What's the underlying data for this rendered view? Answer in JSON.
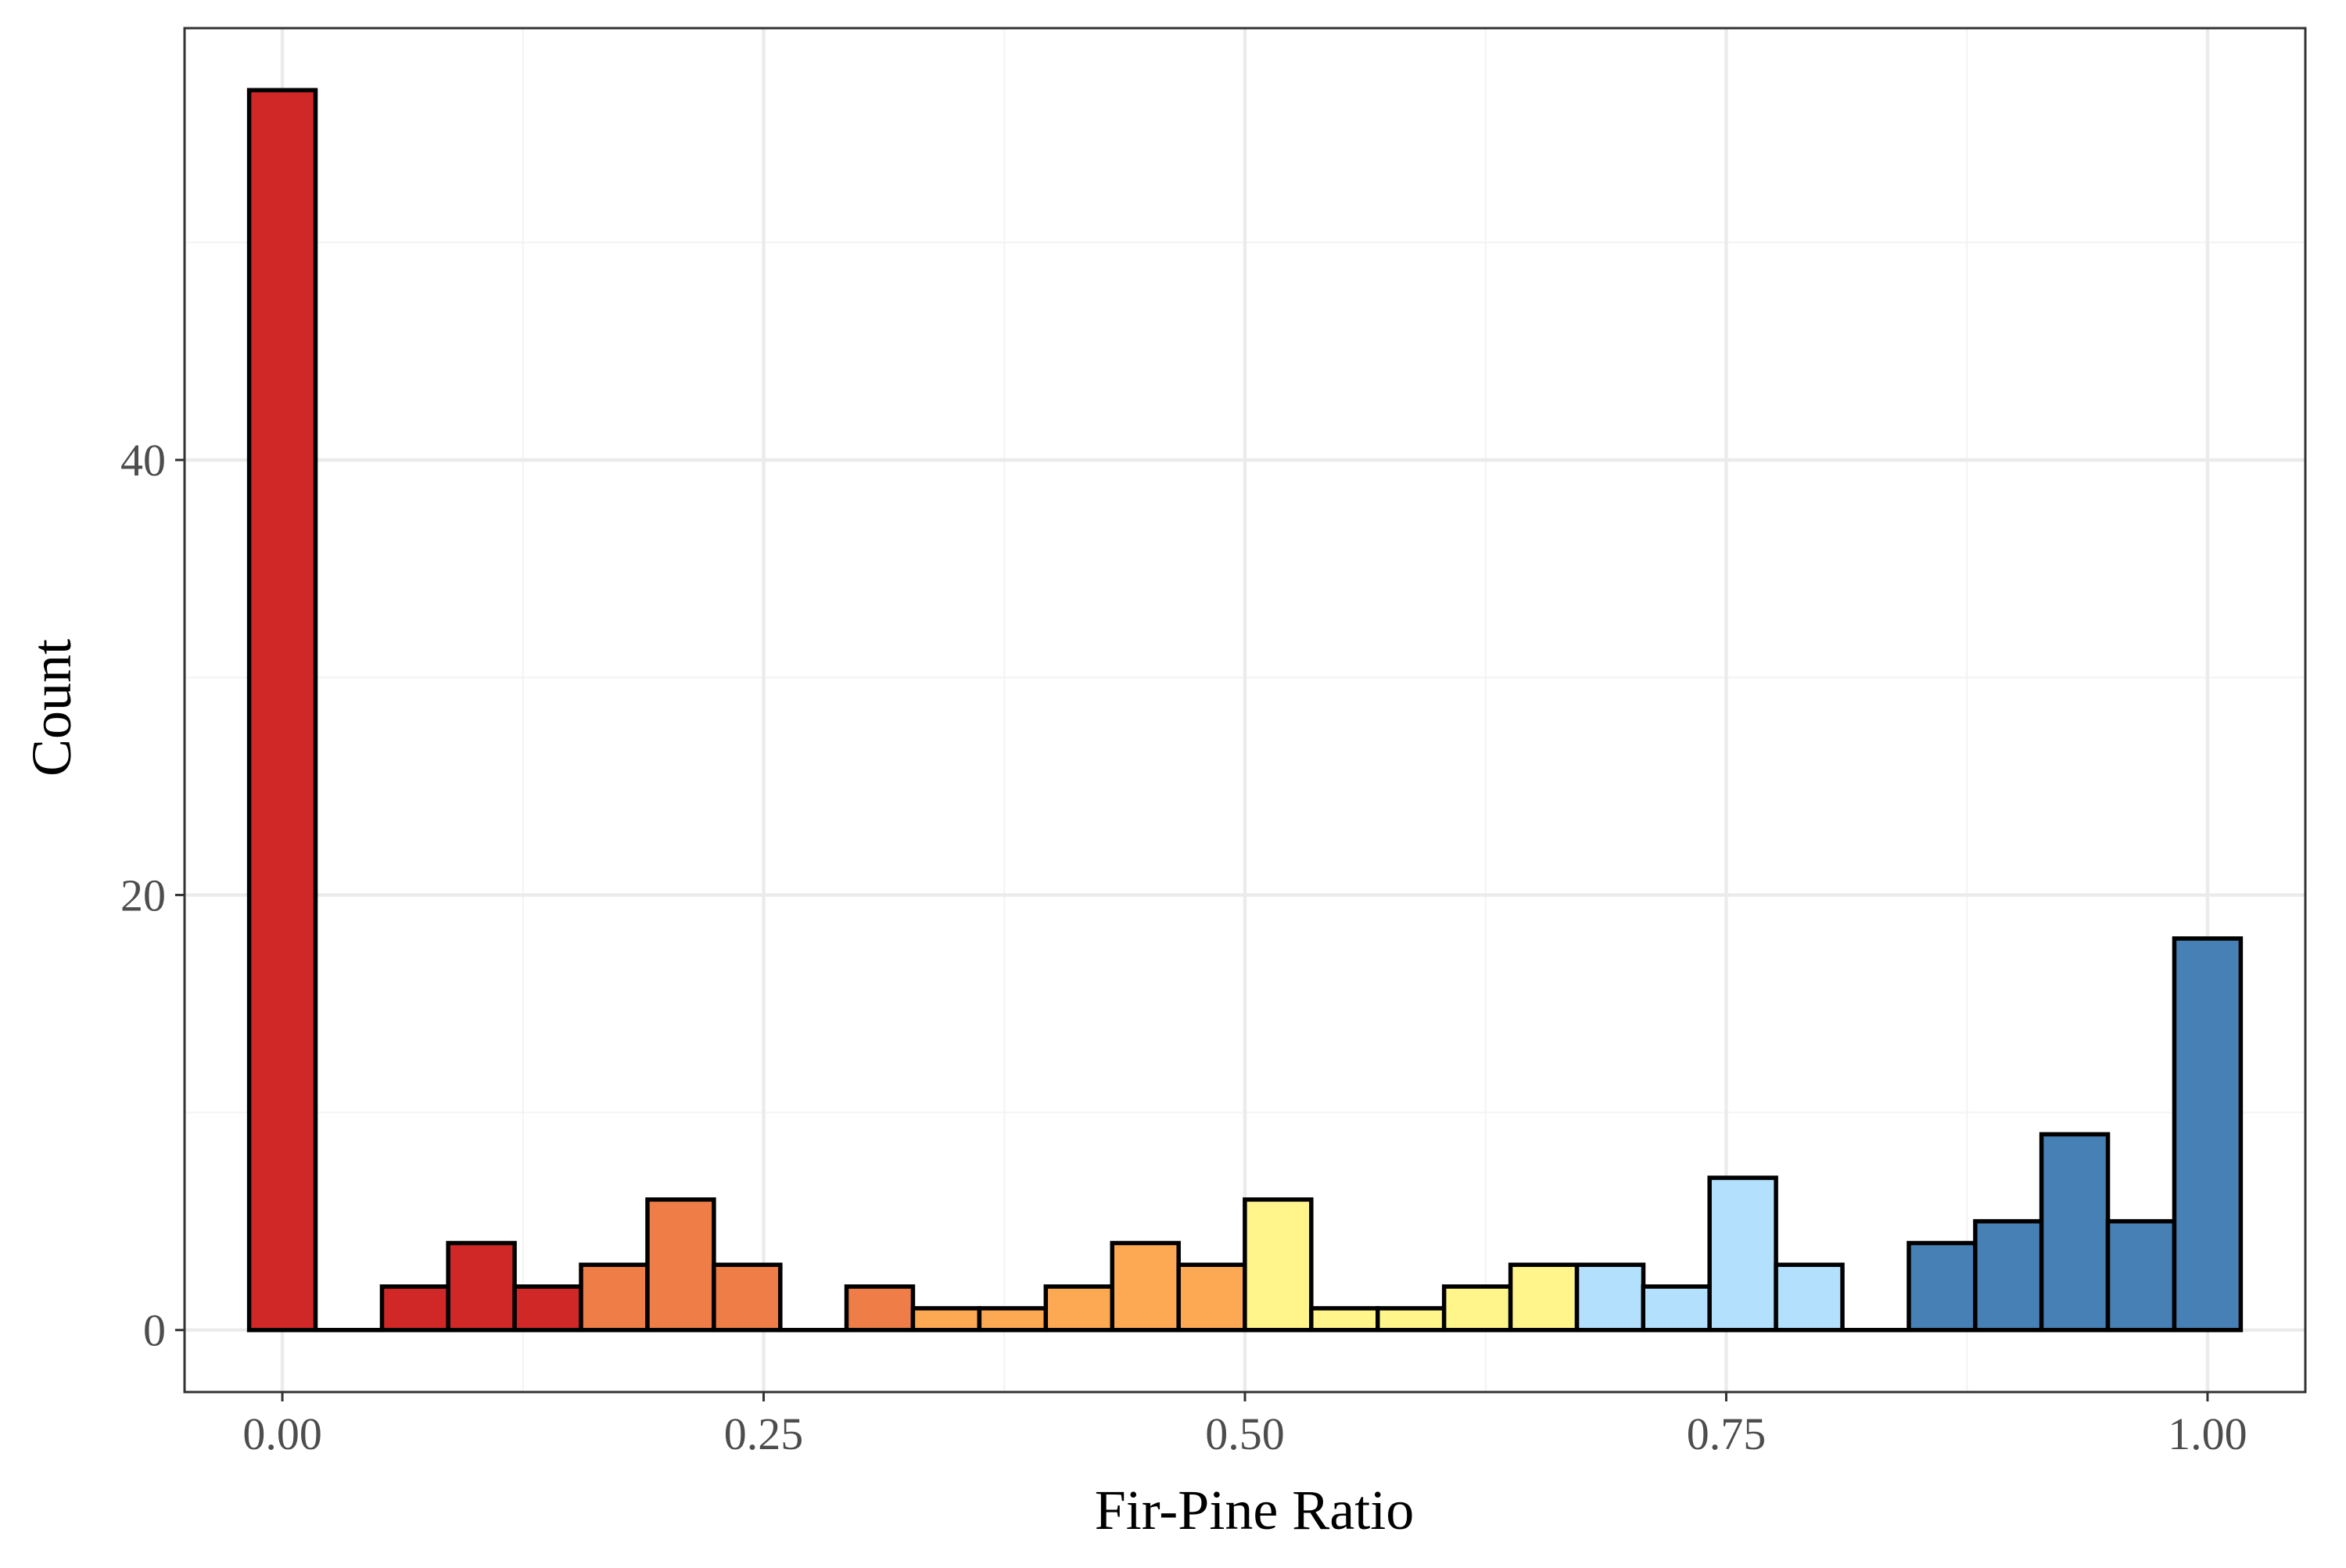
{
  "chart_data": {
    "type": "bar",
    "xlabel": "Fir-Pine Ratio",
    "ylabel": "Count",
    "xlim": [
      -0.0508,
      1.0508
    ],
    "ylim": [
      -2.85,
      59.85
    ],
    "x_ticks": [
      0.0,
      0.25,
      0.5,
      0.75,
      1.0
    ],
    "x_tick_labels": [
      "0.00",
      "0.25",
      "0.50",
      "0.75",
      "1.00"
    ],
    "x_minor_ticks": [
      0.125,
      0.375,
      0.625,
      0.875
    ],
    "y_ticks": [
      0,
      20,
      40
    ],
    "y_tick_labels": [
      "0",
      "20",
      "40"
    ],
    "y_minor_ticks": [
      10,
      30,
      50
    ],
    "grid": true,
    "legend": "none",
    "bin_width": 0.0345,
    "bins": [
      {
        "x": 0.0,
        "count": 57,
        "fill": "#d02727"
      },
      {
        "x": 0.0345,
        "count": 0,
        "fill": "#d02727"
      },
      {
        "x": 0.069,
        "count": 2,
        "fill": "#d02727"
      },
      {
        "x": 0.1034,
        "count": 4,
        "fill": "#d02727"
      },
      {
        "x": 0.1379,
        "count": 2,
        "fill": "#d02727"
      },
      {
        "x": 0.1724,
        "count": 3,
        "fill": "#ee7d47"
      },
      {
        "x": 0.2069,
        "count": 6,
        "fill": "#ee7d47"
      },
      {
        "x": 0.2414,
        "count": 3,
        "fill": "#ee7d47"
      },
      {
        "x": 0.2759,
        "count": 0,
        "fill": "#ee7d47"
      },
      {
        "x": 0.3103,
        "count": 2,
        "fill": "#ee7d47"
      },
      {
        "x": 0.3448,
        "count": 1,
        "fill": "#fda954"
      },
      {
        "x": 0.3793,
        "count": 1,
        "fill": "#fda954"
      },
      {
        "x": 0.4138,
        "count": 2,
        "fill": "#fda954"
      },
      {
        "x": 0.4483,
        "count": 4,
        "fill": "#fda954"
      },
      {
        "x": 0.4828,
        "count": 3,
        "fill": "#fda954"
      },
      {
        "x": 0.5172,
        "count": 6,
        "fill": "#fff58b"
      },
      {
        "x": 0.5517,
        "count": 1,
        "fill": "#fff58b"
      },
      {
        "x": 0.5862,
        "count": 1,
        "fill": "#fff58b"
      },
      {
        "x": 0.6207,
        "count": 2,
        "fill": "#fff58b"
      },
      {
        "x": 0.6552,
        "count": 3,
        "fill": "#fff58b"
      },
      {
        "x": 0.6897,
        "count": 3,
        "fill": "#b2e0fd"
      },
      {
        "x": 0.7241,
        "count": 2,
        "fill": "#b2e0fd"
      },
      {
        "x": 0.7586,
        "count": 7,
        "fill": "#b2e0fd"
      },
      {
        "x": 0.7931,
        "count": 3,
        "fill": "#b2e0fd"
      },
      {
        "x": 0.8276,
        "count": 0,
        "fill": "#b2e0fd"
      },
      {
        "x": 0.8621,
        "count": 4,
        "fill": "#4680b4"
      },
      {
        "x": 0.8966,
        "count": 5,
        "fill": "#4680b4"
      },
      {
        "x": 0.931,
        "count": 9,
        "fill": "#4680b4"
      },
      {
        "x": 0.9655,
        "count": 5,
        "fill": "#4680b4"
      },
      {
        "x": 1.0,
        "count": 18,
        "fill": "#4680b4"
      }
    ]
  },
  "colors": {
    "background": "#ffffff",
    "panel_border": "#333333",
    "grid_major": "#ebebeb",
    "grid_minor": "#f4f4f4",
    "bar_outline": "#000000",
    "tick_label": "#4d4d4d",
    "axis_title": "#000000"
  }
}
